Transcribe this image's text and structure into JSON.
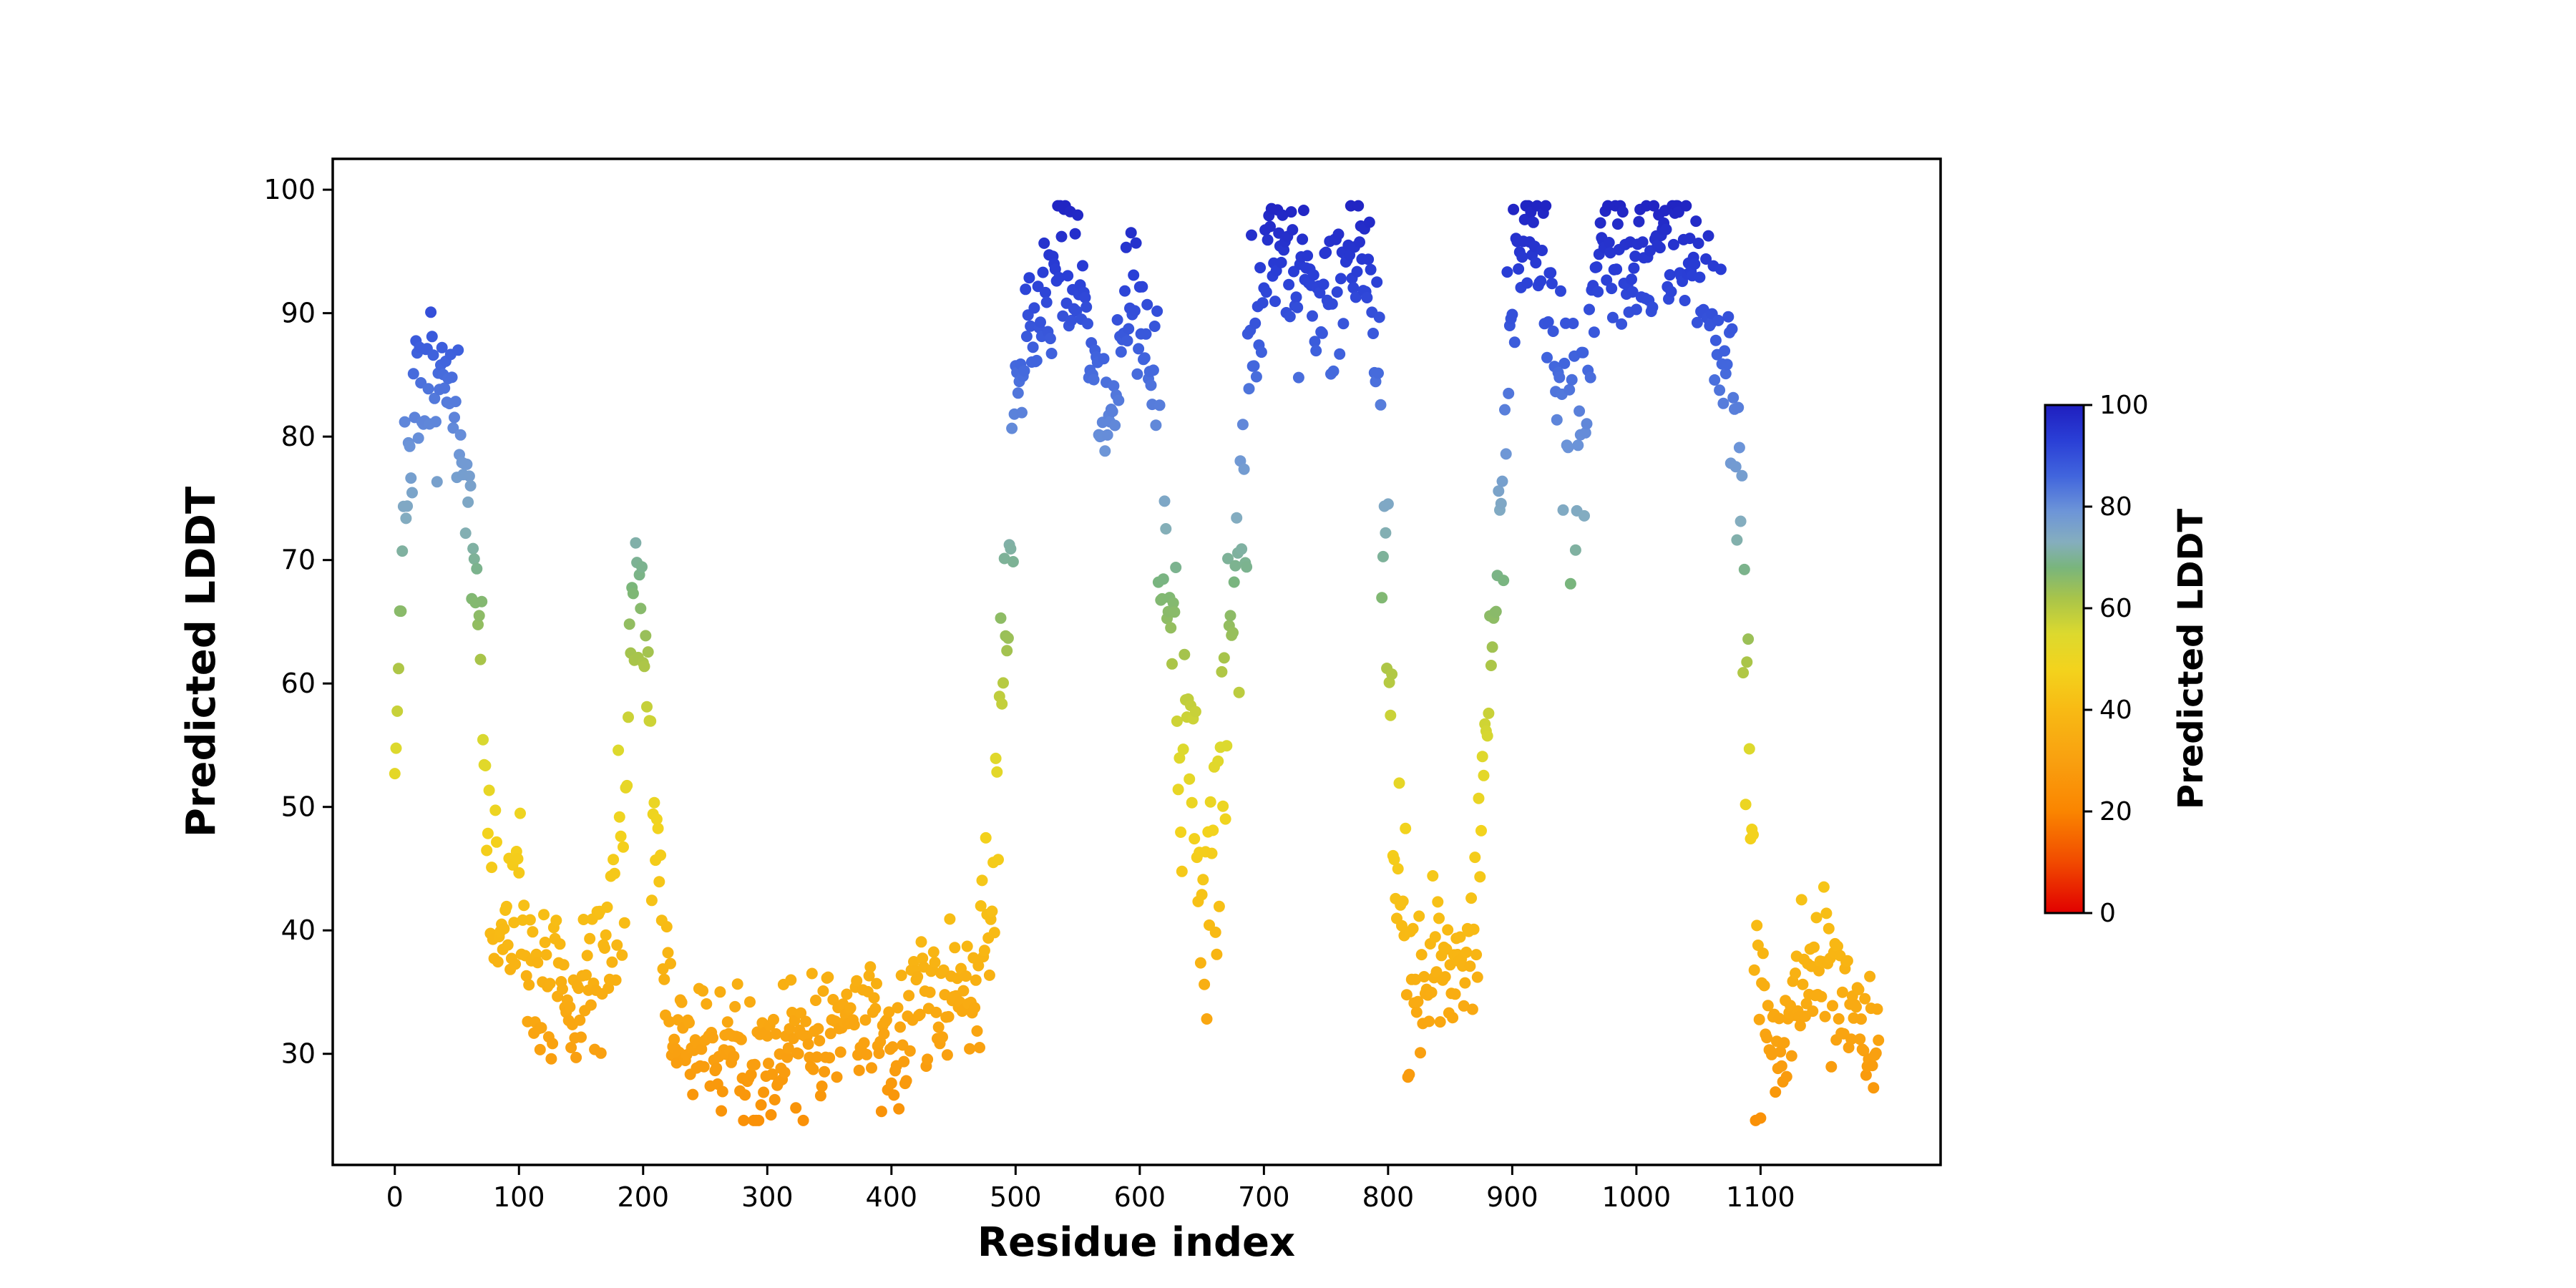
{
  "figure": {
    "background": "#ffffff"
  },
  "chart_data": {
    "type": "scatter",
    "title": "",
    "xlabel": "Residue index",
    "ylabel": "Predicted LDDT",
    "xlim": [
      -50,
      1245
    ],
    "ylim": [
      21,
      102.5
    ],
    "xticks": [
      0,
      100,
      200,
      300,
      400,
      500,
      600,
      700,
      800,
      900,
      1000,
      1100
    ],
    "yticks": [
      30,
      40,
      50,
      60,
      70,
      80,
      90,
      100
    ],
    "grid": false,
    "legend": null,
    "marker": {
      "radius": 8,
      "shape": "circle"
    },
    "n_points": 1196,
    "x_step": 1,
    "seed": 7,
    "noise_sigma": 3.0,
    "noise_zones": [
      [
        68,
        92,
        4.5
      ],
      [
        92,
        115,
        4.2
      ],
      [
        178,
        216,
        4.5
      ],
      [
        470,
        500,
        4.5
      ],
      [
        610,
        690,
        7.0
      ],
      [
        788,
        818,
        5.5
      ],
      [
        868,
        902,
        4.5
      ],
      [
        930,
        962,
        4.5
      ],
      [
        1076,
        1104,
        5.5
      ]
    ],
    "y_clamp": [
      24.6,
      98.7
    ],
    "trend": [
      [
        0,
        54
      ],
      [
        3,
        62
      ],
      [
        6,
        72
      ],
      [
        10,
        78
      ],
      [
        15,
        80
      ],
      [
        20,
        82
      ],
      [
        25,
        82
      ],
      [
        30,
        84
      ],
      [
        35,
        85
      ],
      [
        40,
        84
      ],
      [
        45,
        82
      ],
      [
        50,
        80
      ],
      [
        55,
        76
      ],
      [
        60,
        73
      ],
      [
        64,
        70
      ],
      [
        68,
        66
      ],
      [
        72,
        57
      ],
      [
        76,
        46
      ],
      [
        80,
        41
      ],
      [
        85,
        39
      ],
      [
        90,
        40
      ],
      [
        95,
        42
      ],
      [
        100,
        41
      ],
      [
        105,
        39
      ],
      [
        110,
        37
      ],
      [
        115,
        36
      ],
      [
        120,
        35
      ],
      [
        125,
        34
      ],
      [
        130,
        35
      ],
      [
        135,
        34
      ],
      [
        140,
        33
      ],
      [
        145,
        34
      ],
      [
        150,
        35
      ],
      [
        155,
        36
      ],
      [
        160,
        36
      ],
      [
        165,
        37
      ],
      [
        170,
        38
      ],
      [
        175,
        41
      ],
      [
        180,
        45
      ],
      [
        185,
        50
      ],
      [
        190,
        60
      ],
      [
        195,
        68
      ],
      [
        200,
        66
      ],
      [
        205,
        58
      ],
      [
        208,
        50
      ],
      [
        212,
        42
      ],
      [
        216,
        37
      ],
      [
        220,
        34
      ],
      [
        230,
        31
      ],
      [
        240,
        30
      ],
      [
        250,
        30
      ],
      [
        260,
        31
      ],
      [
        270,
        30
      ],
      [
        280,
        30
      ],
      [
        290,
        29
      ],
      [
        300,
        30
      ],
      [
        310,
        30
      ],
      [
        320,
        31
      ],
      [
        330,
        31
      ],
      [
        340,
        32
      ],
      [
        350,
        33
      ],
      [
        360,
        33
      ],
      [
        370,
        32
      ],
      [
        380,
        33
      ],
      [
        390,
        32
      ],
      [
        400,
        31
      ],
      [
        410,
        33
      ],
      [
        420,
        34
      ],
      [
        430,
        35
      ],
      [
        440,
        35
      ],
      [
        450,
        36
      ],
      [
        460,
        36
      ],
      [
        470,
        37
      ],
      [
        475,
        39
      ],
      [
        480,
        42
      ],
      [
        484,
        48
      ],
      [
        488,
        57
      ],
      [
        492,
        65
      ],
      [
        496,
        73
      ],
      [
        500,
        80
      ],
      [
        505,
        85
      ],
      [
        510,
        88
      ],
      [
        515,
        90
      ],
      [
        520,
        91
      ],
      [
        525,
        90
      ],
      [
        530,
        92
      ],
      [
        535,
        93
      ],
      [
        540,
        94
      ],
      [
        545,
        94
      ],
      [
        550,
        93
      ],
      [
        555,
        92
      ],
      [
        560,
        89
      ],
      [
        565,
        86
      ],
      [
        570,
        82
      ],
      [
        575,
        81
      ],
      [
        580,
        85
      ],
      [
        585,
        89
      ],
      [
        590,
        91
      ],
      [
        595,
        92
      ],
      [
        600,
        90
      ],
      [
        605,
        88
      ],
      [
        610,
        85
      ],
      [
        615,
        80
      ],
      [
        620,
        72
      ],
      [
        625,
        65
      ],
      [
        630,
        60
      ],
      [
        635,
        57
      ],
      [
        640,
        53
      ],
      [
        645,
        49
      ],
      [
        650,
        45
      ],
      [
        655,
        43
      ],
      [
        660,
        44
      ],
      [
        665,
        50
      ],
      [
        670,
        57
      ],
      [
        675,
        65
      ],
      [
        680,
        72
      ],
      [
        685,
        78
      ],
      [
        690,
        84
      ],
      [
        695,
        89
      ],
      [
        700,
        93
      ],
      [
        705,
        95
      ],
      [
        710,
        96
      ],
      [
        715,
        96
      ],
      [
        720,
        95
      ],
      [
        725,
        94
      ],
      [
        730,
        94
      ],
      [
        735,
        93
      ],
      [
        740,
        92
      ],
      [
        745,
        90
      ],
      [
        750,
        89
      ],
      [
        755,
        91
      ],
      [
        760,
        93
      ],
      [
        765,
        95
      ],
      [
        770,
        96
      ],
      [
        775,
        96
      ],
      [
        780,
        94
      ],
      [
        785,
        92
      ],
      [
        790,
        88
      ],
      [
        795,
        80
      ],
      [
        800,
        65
      ],
      [
        805,
        50
      ],
      [
        810,
        42
      ],
      [
        815,
        39
      ],
      [
        820,
        37
      ],
      [
        825,
        37
      ],
      [
        830,
        36
      ],
      [
        835,
        37
      ],
      [
        840,
        36
      ],
      [
        845,
        36
      ],
      [
        850,
        37
      ],
      [
        855,
        36
      ],
      [
        860,
        37
      ],
      [
        865,
        38
      ],
      [
        870,
        41
      ],
      [
        874,
        46
      ],
      [
        878,
        53
      ],
      [
        882,
        60
      ],
      [
        886,
        67
      ],
      [
        890,
        75
      ],
      [
        894,
        82
      ],
      [
        898,
        89
      ],
      [
        902,
        93
      ],
      [
        906,
        96
      ],
      [
        910,
        97
      ],
      [
        915,
        97
      ],
      [
        920,
        96
      ],
      [
        925,
        94
      ],
      [
        930,
        92
      ],
      [
        935,
        89
      ],
      [
        940,
        86
      ],
      [
        945,
        82
      ],
      [
        950,
        79
      ],
      [
        955,
        80
      ],
      [
        960,
        85
      ],
      [
        965,
        90
      ],
      [
        970,
        93
      ],
      [
        975,
        95
      ],
      [
        980,
        96
      ],
      [
        985,
        97
      ],
      [
        990,
        97
      ],
      [
        995,
        95
      ],
      [
        1000,
        94
      ],
      [
        1005,
        93
      ],
      [
        1010,
        93
      ],
      [
        1015,
        95
      ],
      [
        1020,
        96
      ],
      [
        1025,
        97
      ],
      [
        1030,
        97
      ],
      [
        1035,
        97
      ],
      [
        1040,
        96
      ],
      [
        1045,
        94
      ],
      [
        1050,
        93
      ],
      [
        1055,
        91
      ],
      [
        1060,
        90
      ],
      [
        1065,
        89
      ],
      [
        1070,
        88
      ],
      [
        1075,
        86
      ],
      [
        1080,
        82
      ],
      [
        1084,
        72
      ],
      [
        1088,
        60
      ],
      [
        1092,
        48
      ],
      [
        1096,
        38
      ],
      [
        1100,
        33
      ],
      [
        1105,
        31
      ],
      [
        1110,
        30
      ],
      [
        1115,
        31
      ],
      [
        1120,
        33
      ],
      [
        1125,
        34
      ],
      [
        1130,
        36
      ],
      [
        1135,
        37
      ],
      [
        1140,
        38
      ],
      [
        1145,
        38
      ],
      [
        1150,
        37
      ],
      [
        1155,
        36
      ],
      [
        1160,
        36
      ],
      [
        1165,
        35
      ],
      [
        1170,
        34
      ],
      [
        1175,
        34
      ],
      [
        1180,
        33
      ],
      [
        1185,
        33
      ],
      [
        1190,
        32
      ],
      [
        1195,
        31
      ]
    ],
    "colormap": {
      "vmin": 0,
      "vmax": 100,
      "stops": [
        [
          0.0,
          "#e10000"
        ],
        [
          0.1,
          "#f14a00"
        ],
        [
          0.2,
          "#fa8500"
        ],
        [
          0.3,
          "#f9a010"
        ],
        [
          0.4,
          "#f8ba14"
        ],
        [
          0.48,
          "#f3d31d"
        ],
        [
          0.55,
          "#dcd92e"
        ],
        [
          0.62,
          "#a8c44a"
        ],
        [
          0.68,
          "#79b57c"
        ],
        [
          0.73,
          "#85aebe"
        ],
        [
          0.79,
          "#6d95d8"
        ],
        [
          0.86,
          "#4165dd"
        ],
        [
          0.93,
          "#2a3fd6"
        ],
        [
          1.0,
          "#1f1fbf"
        ]
      ]
    },
    "colorbar": {
      "label": "Predicted LDDT",
      "ticks": [
        0,
        20,
        40,
        60,
        80,
        100
      ]
    }
  }
}
